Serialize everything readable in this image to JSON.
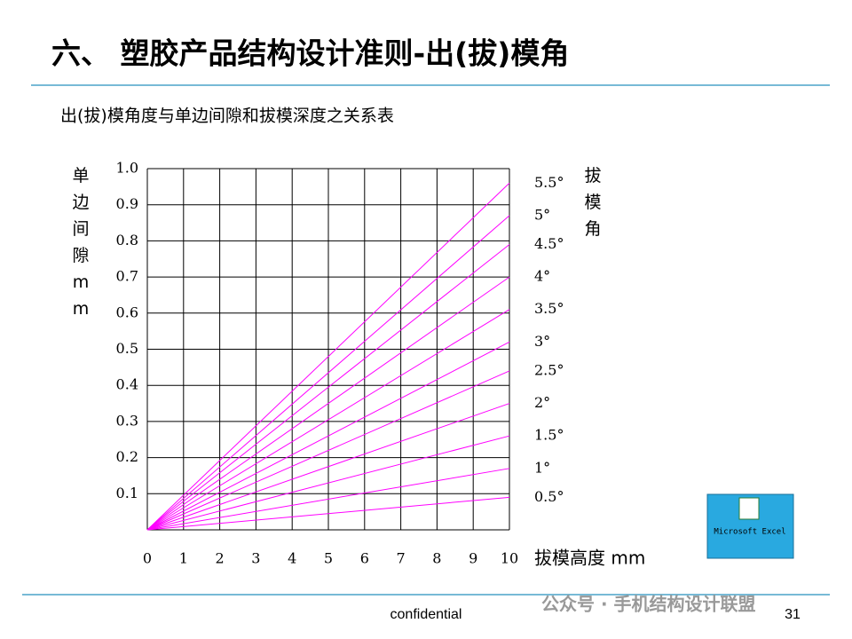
{
  "slide": {
    "title": "六、 塑胶产品结构设计准则-出(拔)模角",
    "footer": "confidential",
    "page_number": "31",
    "watermark": "公众号 · 手机结构设计联盟",
    "icon_label": "Microsoft Excel"
  },
  "chart_data": {
    "type": "line",
    "title": "出(拔)模角度与单边间隙和拔模深度之关系表",
    "y_label": "单边间隙mm",
    "x_label": "拔模高度 mm",
    "legend_title": "拔模角",
    "x": [
      0,
      10
    ],
    "series": [
      {
        "name": "0.5°",
        "color": "#ff00ff",
        "values": [
          0,
          0.09
        ]
      },
      {
        "name": "1°",
        "color": "#ff00ff",
        "values": [
          0,
          0.17
        ]
      },
      {
        "name": "1.5°",
        "color": "#ff00ff",
        "values": [
          0,
          0.26
        ]
      },
      {
        "name": "2°",
        "color": "#ff00ff",
        "values": [
          0,
          0.35
        ]
      },
      {
        "name": "2.5°",
        "color": "#ff00ff",
        "values": [
          0,
          0.44
        ]
      },
      {
        "name": "3°",
        "color": "#ff00ff",
        "values": [
          0,
          0.52
        ]
      },
      {
        "name": "3.5°",
        "color": "#ff00ff",
        "values": [
          0,
          0.61
        ]
      },
      {
        "name": "4°",
        "color": "#ff00ff",
        "values": [
          0,
          0.7
        ]
      },
      {
        "name": "4.5°",
        "color": "#ff00ff",
        "values": [
          0,
          0.79
        ]
      },
      {
        "name": "5°",
        "color": "#ff00ff",
        "values": [
          0,
          0.87
        ]
      },
      {
        "name": "5.5°",
        "color": "#ff00ff",
        "values": [
          0,
          0.96
        ]
      }
    ],
    "xlim": [
      0,
      10
    ],
    "xticks": [
      0,
      1,
      2,
      3,
      4,
      5,
      6,
      7,
      8,
      9,
      10
    ],
    "ylim": [
      0,
      1
    ],
    "yticks": [
      0.1,
      0.2,
      0.3,
      0.4,
      0.5,
      0.6,
      0.7,
      0.8,
      0.9,
      {
        "value": 1,
        "label": "1.0"
      }
    ],
    "grid": true
  }
}
